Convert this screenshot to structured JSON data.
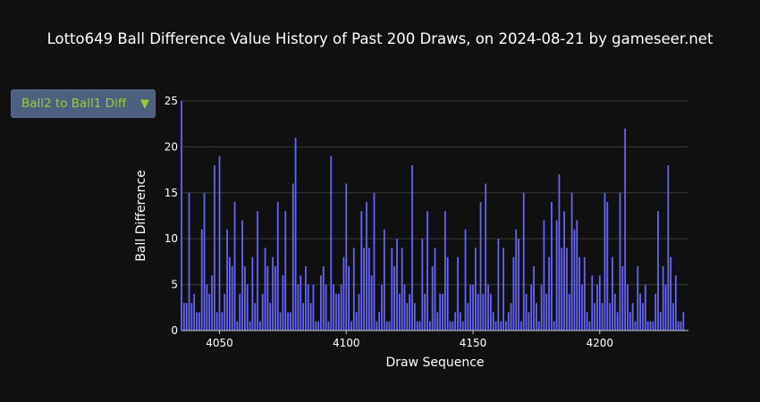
{
  "title": "Lotto649 Ball Difference Value History of Past 200 Draws, on 2024-08-21 by gameseer.net",
  "selector": {
    "selected": "Ball2 to Ball1 Diff",
    "arrow_icon": "triangle-down-icon"
  },
  "colors": {
    "background": "#101010",
    "bar": "#6666ff",
    "grid": "#3a3a3a",
    "text": "#ffffff",
    "selector_bg": "#4d6080",
    "selector_text": "#9acd32"
  },
  "chart_data": {
    "type": "bar",
    "xlabel": "Draw Sequence",
    "ylabel": "Ball Difference",
    "xlim": [
      4035,
      4235
    ],
    "ylim": [
      0,
      25
    ],
    "x_ticks": [
      4050,
      4100,
      4150,
      4200
    ],
    "y_ticks": [
      0,
      5,
      10,
      15,
      20,
      25
    ],
    "grid": true,
    "x_start": 4035,
    "values": [
      25,
      3,
      3,
      15,
      3,
      4,
      2,
      2,
      11,
      15,
      5,
      4,
      6,
      18,
      2,
      19,
      2,
      4,
      11,
      8,
      7,
      14,
      1,
      4,
      12,
      7,
      5,
      1,
      8,
      3,
      13,
      1,
      4,
      9,
      7,
      3,
      8,
      7,
      14,
      2,
      6,
      13,
      2,
      2,
      16,
      21,
      5,
      6,
      3,
      7,
      5,
      3,
      5,
      1,
      1,
      6,
      7,
      5,
      1,
      19,
      5,
      4,
      4,
      5,
      8,
      16,
      7,
      1,
      9,
      2,
      4,
      13,
      9,
      14,
      9,
      6,
      15,
      1,
      2,
      5,
      11,
      1,
      1,
      9,
      7,
      10,
      4,
      9,
      5,
      3,
      4,
      18,
      3,
      1,
      1,
      10,
      4,
      13,
      1,
      7,
      9,
      2,
      4,
      4,
      13,
      8,
      1,
      1,
      2,
      8,
      2,
      1,
      11,
      3,
      5,
      5,
      9,
      4,
      14,
      4,
      16,
      5,
      4,
      2,
      1,
      10,
      1,
      9,
      1,
      2,
      3,
      8,
      11,
      10,
      1,
      15,
      4,
      2,
      5,
      7,
      3,
      1,
      5,
      12,
      4,
      8,
      14,
      1,
      12,
      17,
      9,
      13,
      9,
      4,
      15,
      11,
      12,
      8,
      5,
      8,
      2,
      1,
      6,
      3,
      5,
      6,
      3,
      15,
      14,
      3,
      8,
      4,
      2,
      15,
      7,
      22,
      5,
      2,
      3,
      1,
      7,
      4,
      3,
      5,
      1,
      1,
      1,
      4,
      13,
      2,
      7,
      5,
      18,
      8,
      3,
      6,
      1,
      1,
      2
    ]
  }
}
